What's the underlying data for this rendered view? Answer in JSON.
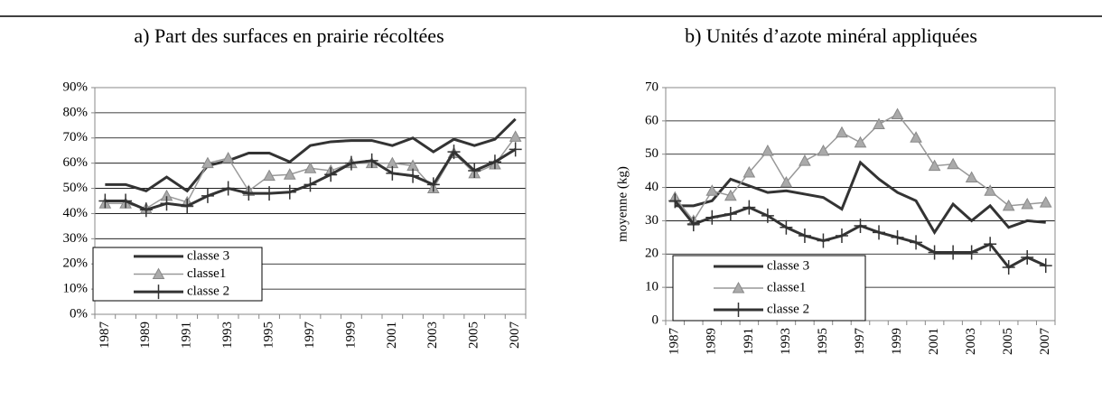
{
  "chart_data": [
    {
      "type": "line",
      "title": "a) Part des surfaces en prairie récoltées",
      "categories": [
        "1987",
        null,
        "1989",
        null,
        "1991",
        null,
        "1993",
        null,
        "1995",
        null,
        "1997",
        null,
        "1999",
        null,
        "2001",
        null,
        "2003",
        null,
        "2005",
        null,
        "2007"
      ],
      "series": [
        {
          "name": "classe 3",
          "color": "#333333",
          "values": [
            51.5,
            51.5,
            49,
            54.5,
            49,
            59,
            61,
            64,
            64,
            60.5,
            67,
            68.5,
            69,
            69,
            67,
            70,
            64.5,
            69.5,
            67,
            69.5,
            77.5
          ]
        },
        {
          "name": "classe1",
          "color": "#999999",
          "values": [
            44,
            44,
            42,
            47,
            44.5,
            60,
            62,
            49,
            55,
            55.5,
            58,
            57,
            60,
            60,
            60,
            59,
            50,
            64,
            56,
            59.5,
            70.5
          ]
        },
        {
          "name": "classe 2",
          "color": "#333333",
          "values": [
            45,
            45,
            41.5,
            44,
            43,
            47,
            50,
            48,
            48,
            48.5,
            51.5,
            55.5,
            60,
            61,
            56,
            55,
            51.5,
            64.5,
            57,
            60.5,
            65.5
          ]
        }
      ],
      "ylim": [
        0,
        90
      ],
      "yticks": [
        {
          "value": 0,
          "label": "0%"
        },
        {
          "value": 10,
          "label": "10%"
        },
        {
          "value": 20,
          "label": "20%"
        },
        {
          "value": 30,
          "label": "30%"
        },
        {
          "value": 40,
          "label": "40%"
        },
        {
          "value": 50,
          "label": "50%"
        },
        {
          "value": 60,
          "label": "60%"
        },
        {
          "value": 70,
          "label": "70%"
        },
        {
          "value": 80,
          "label": "80%"
        },
        {
          "value": 90,
          "label": "90%"
        }
      ],
      "grid": true,
      "legend": "lower left"
    },
    {
      "type": "line",
      "title": "b) Unités d’azote minéral appliquées",
      "ylabel": "moyenne (kg)",
      "categories": [
        "1987",
        null,
        "1989",
        null,
        "1991",
        null,
        "1993",
        null,
        "1995",
        null,
        "1997",
        null,
        "1999",
        null,
        "2001",
        null,
        "2003",
        null,
        "2005",
        null,
        "2007"
      ],
      "series": [
        {
          "name": "classe 3",
          "color": "#333333",
          "values": [
            34.5,
            34.5,
            36,
            42.5,
            40.5,
            38.5,
            39,
            38,
            37,
            33.5,
            47.5,
            42.5,
            38.5,
            36,
            26.5,
            35,
            30,
            34.5,
            28,
            30,
            29.5
          ]
        },
        {
          "name": "classe1",
          "color": "#999999",
          "values": [
            37,
            30,
            39,
            37.5,
            44.5,
            51,
            41.5,
            48,
            51,
            56.5,
            53.5,
            59,
            62,
            55,
            46.5,
            47,
            43,
            39,
            34.5,
            35,
            35.5
          ]
        },
        {
          "name": "classe 2",
          "color": "#333333",
          "values": [
            36,
            29,
            31,
            32,
            34,
            31.5,
            28,
            25.5,
            24,
            25.5,
            28.5,
            26.5,
            25,
            23.5,
            20.5,
            20.5,
            20.5,
            23,
            16,
            19,
            16.5
          ]
        }
      ],
      "ylim": [
        0,
        70
      ],
      "yticks": [
        0,
        10,
        20,
        30,
        40,
        50,
        60,
        70
      ],
      "grid": true,
      "legend": "lower left"
    }
  ]
}
